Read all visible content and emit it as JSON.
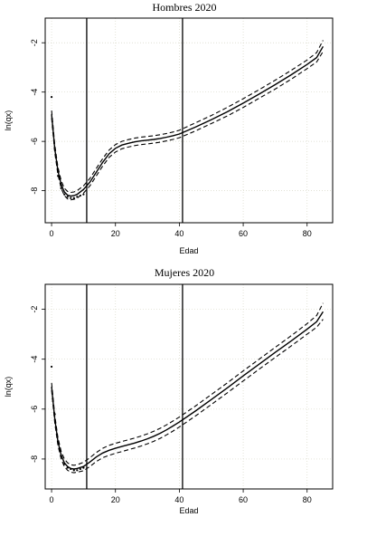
{
  "chart_data": [
    {
      "type": "line",
      "title": "Hombres 2020",
      "xlabel": "Edad",
      "ylabel": "ln(qx)",
      "xlim": [
        -2,
        88
      ],
      "ylim": [
        -9.3,
        -1.0
      ],
      "x_ticks": [
        "0",
        "20",
        "40",
        "60",
        "80"
      ],
      "y_ticks": [
        "-2",
        "-4",
        "-6",
        "-8"
      ],
      "vlines": [
        11,
        41
      ],
      "grid": true,
      "observed_points": {
        "x": [
          0,
          1,
          2,
          3,
          4,
          5,
          6,
          7,
          8,
          9,
          10
        ],
        "y": [
          -4.2,
          -6.3,
          -7.4,
          -7.9,
          -8.15,
          -8.25,
          -8.3,
          -8.3,
          -8.25,
          -8.2,
          -8.15
        ]
      },
      "series": [
        {
          "role": "fitted",
          "x": [
            0,
            1,
            2,
            3,
            4,
            5,
            6,
            7,
            8,
            10,
            12,
            14,
            16,
            18,
            20,
            22,
            24,
            26,
            28,
            30,
            32,
            34,
            36,
            38,
            40,
            45,
            50,
            55,
            60,
            65,
            70,
            75,
            80,
            83,
            85
          ],
          "y": [
            -4.9,
            -6.3,
            -7.2,
            -7.75,
            -8.05,
            -8.18,
            -8.22,
            -8.2,
            -8.15,
            -7.95,
            -7.65,
            -7.25,
            -6.85,
            -6.5,
            -6.28,
            -6.15,
            -6.08,
            -6.02,
            -5.98,
            -5.95,
            -5.92,
            -5.88,
            -5.83,
            -5.77,
            -5.7,
            -5.42,
            -5.12,
            -4.8,
            -4.45,
            -4.08,
            -3.7,
            -3.3,
            -2.88,
            -2.6,
            -2.15
          ]
        },
        {
          "role": "upper",
          "x": [
            0,
            1,
            2,
            3,
            4,
            5,
            6,
            7,
            8,
            10,
            12,
            14,
            16,
            18,
            20,
            22,
            24,
            26,
            28,
            30,
            32,
            34,
            36,
            38,
            40,
            45,
            50,
            55,
            60,
            65,
            70,
            75,
            80,
            83,
            85
          ],
          "y": [
            -4.75,
            -6.15,
            -7.05,
            -7.6,
            -7.9,
            -8.03,
            -8.07,
            -8.05,
            -8.0,
            -7.8,
            -7.5,
            -7.1,
            -6.7,
            -6.35,
            -6.13,
            -6.0,
            -5.93,
            -5.87,
            -5.83,
            -5.8,
            -5.77,
            -5.73,
            -5.68,
            -5.62,
            -5.55,
            -5.25,
            -4.95,
            -4.62,
            -4.27,
            -3.9,
            -3.52,
            -3.12,
            -2.7,
            -2.4,
            -1.9
          ]
        },
        {
          "role": "lower",
          "x": [
            0,
            1,
            2,
            3,
            4,
            5,
            6,
            7,
            8,
            10,
            12,
            14,
            16,
            18,
            20,
            22,
            24,
            26,
            28,
            30,
            32,
            34,
            36,
            38,
            40,
            45,
            50,
            55,
            60,
            65,
            70,
            75,
            80,
            83,
            85
          ],
          "y": [
            -5.05,
            -6.45,
            -7.35,
            -7.9,
            -8.2,
            -8.33,
            -8.37,
            -8.35,
            -8.3,
            -8.1,
            -7.8,
            -7.4,
            -7.0,
            -6.65,
            -6.43,
            -6.3,
            -6.23,
            -6.17,
            -6.13,
            -6.1,
            -6.07,
            -6.03,
            -5.98,
            -5.92,
            -5.85,
            -5.58,
            -5.28,
            -4.97,
            -4.62,
            -4.25,
            -3.88,
            -3.48,
            -3.05,
            -2.78,
            -2.35
          ]
        }
      ]
    },
    {
      "type": "line",
      "title": "Mujeres 2020",
      "xlabel": "Edad",
      "ylabel": "ln(qx)",
      "xlim": [
        -2,
        88
      ],
      "ylim": [
        -9.2,
        -1.0
      ],
      "x_ticks": [
        "0",
        "20",
        "40",
        "60",
        "80"
      ],
      "y_ticks": [
        "-2",
        "-4",
        "-6",
        "-8"
      ],
      "vlines": [
        11,
        41
      ],
      "grid": true,
      "observed_points": {
        "x": [
          0,
          1,
          2,
          3,
          4,
          5,
          6,
          7,
          8,
          9,
          10
        ],
        "y": [
          -4.3,
          -6.2,
          -7.3,
          -7.9,
          -8.2,
          -8.35,
          -8.4,
          -8.45,
          -8.45,
          -8.4,
          -8.35
        ]
      },
      "series": [
        {
          "role": "fitted",
          "x": [
            0,
            1,
            2,
            3,
            4,
            5,
            6,
            7,
            8,
            10,
            12,
            14,
            16,
            18,
            20,
            22,
            24,
            26,
            28,
            30,
            32,
            34,
            36,
            38,
            40,
            45,
            50,
            55,
            60,
            65,
            70,
            75,
            80,
            83,
            85
          ],
          "y": [
            -5.1,
            -6.4,
            -7.3,
            -7.85,
            -8.15,
            -8.3,
            -8.38,
            -8.4,
            -8.38,
            -8.3,
            -8.12,
            -7.92,
            -7.76,
            -7.65,
            -7.57,
            -7.5,
            -7.43,
            -7.36,
            -7.28,
            -7.19,
            -7.09,
            -6.97,
            -6.83,
            -6.68,
            -6.52,
            -6.08,
            -5.62,
            -5.15,
            -4.67,
            -4.2,
            -3.73,
            -3.27,
            -2.8,
            -2.5,
            -2.1
          ]
        },
        {
          "role": "upper",
          "x": [
            0,
            1,
            2,
            3,
            4,
            5,
            6,
            7,
            8,
            10,
            12,
            14,
            16,
            18,
            20,
            22,
            24,
            26,
            28,
            30,
            32,
            34,
            36,
            38,
            40,
            45,
            50,
            55,
            60,
            65,
            70,
            75,
            80,
            83,
            85
          ],
          "y": [
            -4.95,
            -6.25,
            -7.15,
            -7.7,
            -8.0,
            -8.15,
            -8.23,
            -8.25,
            -8.23,
            -8.13,
            -7.95,
            -7.74,
            -7.57,
            -7.45,
            -7.37,
            -7.3,
            -7.23,
            -7.16,
            -7.08,
            -6.99,
            -6.89,
            -6.77,
            -6.63,
            -6.48,
            -6.32,
            -5.88,
            -5.42,
            -4.95,
            -4.47,
            -4.0,
            -3.53,
            -3.06,
            -2.58,
            -2.25,
            -1.75
          ]
        },
        {
          "role": "lower",
          "x": [
            0,
            1,
            2,
            3,
            4,
            5,
            6,
            7,
            8,
            10,
            12,
            14,
            16,
            18,
            20,
            22,
            24,
            26,
            28,
            30,
            32,
            34,
            36,
            38,
            40,
            45,
            50,
            55,
            60,
            65,
            70,
            75,
            80,
            83,
            85
          ],
          "y": [
            -5.25,
            -6.55,
            -7.45,
            -8.0,
            -8.3,
            -8.45,
            -8.53,
            -8.55,
            -8.53,
            -8.47,
            -8.3,
            -8.1,
            -7.95,
            -7.85,
            -7.77,
            -7.7,
            -7.63,
            -7.56,
            -7.48,
            -7.39,
            -7.29,
            -7.17,
            -7.03,
            -6.88,
            -6.72,
            -6.28,
            -5.82,
            -5.35,
            -4.87,
            -4.4,
            -3.93,
            -3.47,
            -3.0,
            -2.72,
            -2.4
          ]
        }
      ]
    }
  ]
}
